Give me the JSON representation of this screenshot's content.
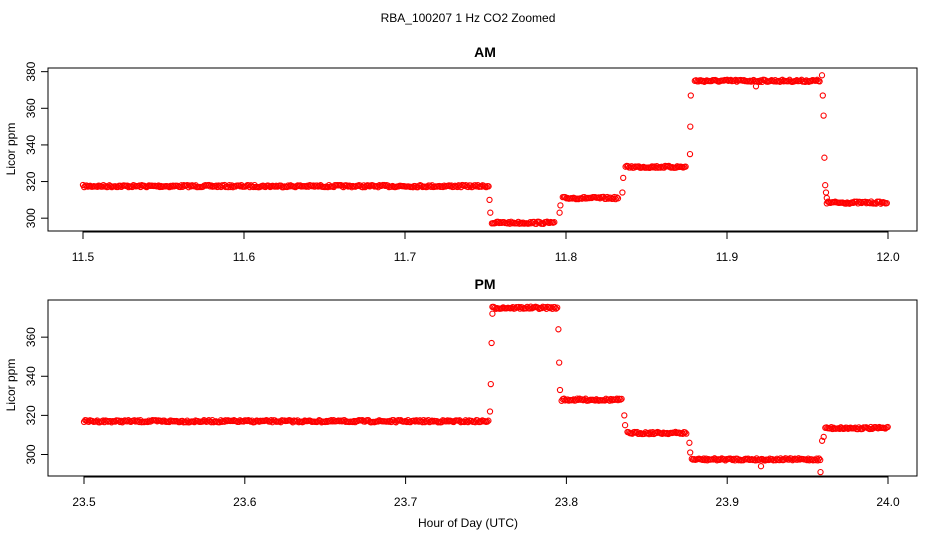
{
  "figure": {
    "title": "RBA_100207  1 Hz CO2 Zoomed",
    "xlabel": "Hour of Day (UTC)",
    "point_color": "#ff0000"
  },
  "chart_data": [
    {
      "type": "scatter",
      "title": "AM",
      "xlabel": "Hour of Day (UTC)",
      "ylabel": "Licor ppm",
      "xlim": [
        11.5,
        12.0
      ],
      "ylim": [
        293,
        382
      ],
      "x_ticks": [
        "11.5",
        "11.6",
        "11.7",
        "11.8",
        "11.9",
        "12.0"
      ],
      "y_ticks": [
        "300",
        "320",
        "340",
        "360",
        "380"
      ],
      "grid": false,
      "series": [
        {
          "color": "#ff0000",
          "segments": [
            {
              "x0": 11.5,
              "x1": 11.752,
              "y": 317.5
            },
            {
              "x0": 11.754,
              "x1": 11.793,
              "y": 297.5
            },
            {
              "x0": 11.798,
              "x1": 11.833,
              "y": 311
            },
            {
              "x0": 11.837,
              "x1": 11.875,
              "y": 328
            },
            {
              "x0": 11.88,
              "x1": 11.958,
              "y": 375
            },
            {
              "x0": 11.962,
              "x1": 12.0,
              "y": 308.5
            }
          ],
          "transitions": [
            {
              "x": 11.7525,
              "y": 310
            },
            {
              "x": 11.753,
              "y": 303
            },
            {
              "x": 11.796,
              "y": 303
            },
            {
              "x": 11.7965,
              "y": 307
            },
            {
              "x": 11.835,
              "y": 314
            },
            {
              "x": 11.8355,
              "y": 322
            },
            {
              "x": 11.877,
              "y": 335
            },
            {
              "x": 11.8772,
              "y": 350
            },
            {
              "x": 11.8775,
              "y": 367
            },
            {
              "x": 11.959,
              "y": 378
            },
            {
              "x": 11.9595,
              "y": 367
            },
            {
              "x": 11.96,
              "y": 356
            },
            {
              "x": 11.9605,
              "y": 333
            },
            {
              "x": 11.961,
              "y": 318
            },
            {
              "x": 11.9615,
              "y": 314
            },
            {
              "x": 11.962,
              "y": 311
            },
            {
              "x": 11.918,
              "y": 372
            }
          ]
        }
      ]
    },
    {
      "type": "scatter",
      "title": "PM",
      "xlabel": "Hour of Day (UTC)",
      "ylabel": "Licor ppm",
      "xlim": [
        23.5,
        24.0
      ],
      "ylim": [
        289,
        379
      ],
      "x_ticks": [
        "23.5",
        "23.6",
        "23.7",
        "23.8",
        "23.9",
        "24.0"
      ],
      "y_ticks": [
        "300",
        "320",
        "340",
        "360"
      ],
      "grid": false,
      "series": [
        {
          "color": "#ff0000",
          "segments": [
            {
              "x0": 23.5,
              "x1": 23.752,
              "y": 317
            },
            {
              "x0": 23.754,
              "x1": 23.795,
              "y": 375
            },
            {
              "x0": 23.797,
              "x1": 23.835,
              "y": 328
            },
            {
              "x0": 23.838,
              "x1": 23.875,
              "y": 311
            },
            {
              "x0": 23.878,
              "x1": 23.958,
              "y": 297.5
            },
            {
              "x0": 23.961,
              "x1": 24.0,
              "y": 313.5
            }
          ],
          "transitions": [
            {
              "x": 23.7525,
              "y": 322
            },
            {
              "x": 23.753,
              "y": 336
            },
            {
              "x": 23.7535,
              "y": 357
            },
            {
              "x": 23.754,
              "y": 372
            },
            {
              "x": 23.795,
              "y": 364
            },
            {
              "x": 23.7955,
              "y": 347
            },
            {
              "x": 23.796,
              "y": 333
            },
            {
              "x": 23.836,
              "y": 320
            },
            {
              "x": 23.8365,
              "y": 315
            },
            {
              "x": 23.8765,
              "y": 306
            },
            {
              "x": 23.877,
              "y": 301
            },
            {
              "x": 23.958,
              "y": 291
            },
            {
              "x": 23.959,
              "y": 307
            },
            {
              "x": 23.96,
              "y": 309
            },
            {
              "x": 23.921,
              "y": 294
            }
          ]
        }
      ]
    }
  ]
}
